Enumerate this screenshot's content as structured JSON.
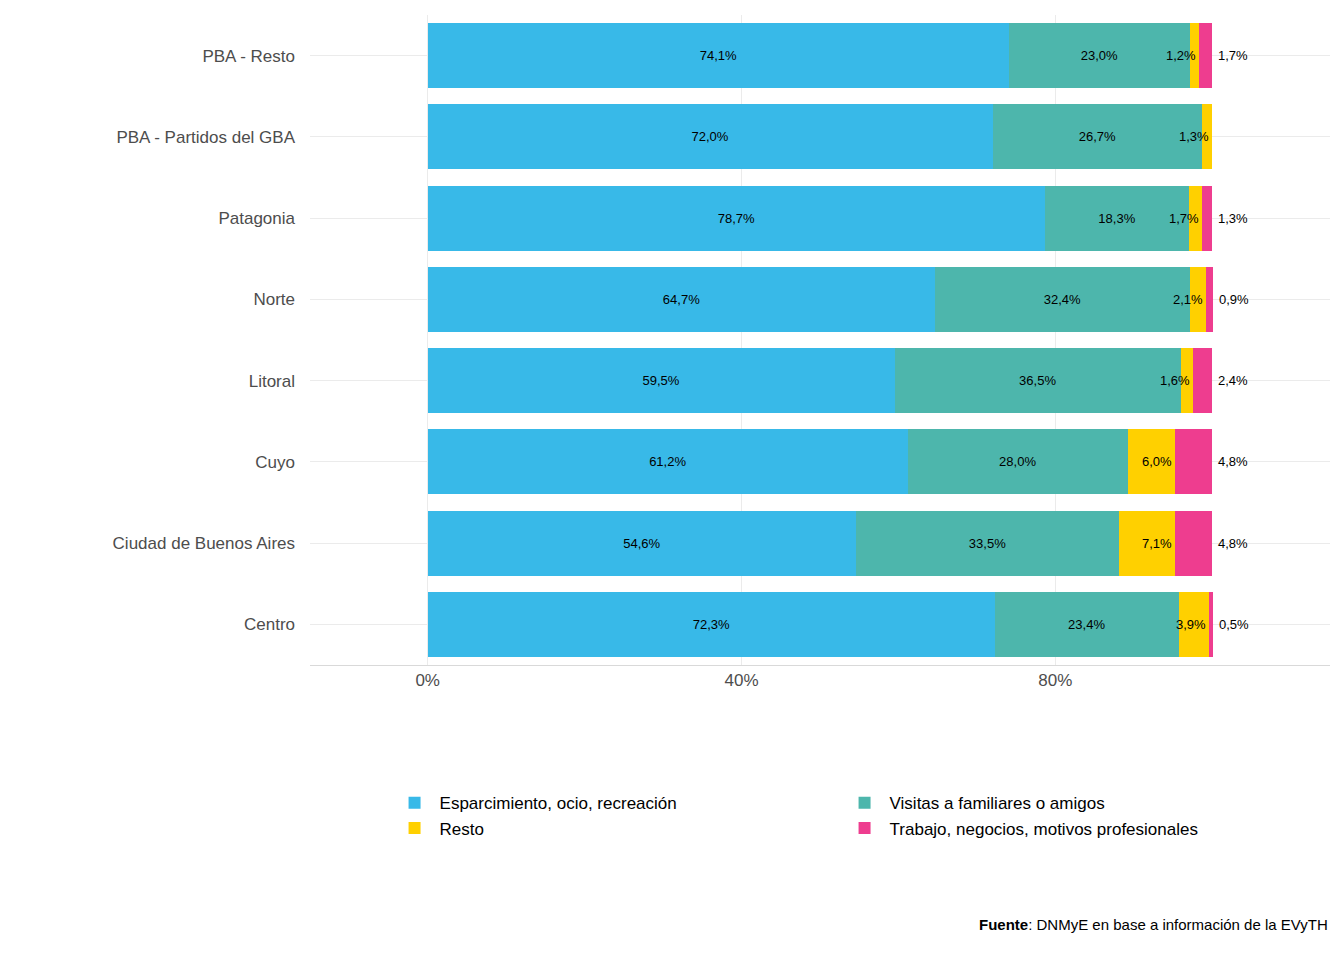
{
  "chart_data": {
    "type": "bar",
    "orientation": "horizontal",
    "stacked": true,
    "data_labels": true,
    "grid": true,
    "legend": "bottom",
    "categories": [
      "PBA - Resto",
      "PBA - Partidos del GBA",
      "Patagonia",
      "Norte",
      "Litoral",
      "Cuyo",
      "Ciudad de Buenos Aires",
      "Centro"
    ],
    "series": [
      {
        "name": "Esparcimiento, ocio, recreación",
        "color": "#38B9E8",
        "values": [
          74.1,
          72.0,
          78.7,
          64.7,
          59.5,
          61.2,
          54.6,
          72.3
        ],
        "value_labels": [
          "74,1%",
          "72,0%",
          "78,7%",
          "64,7%",
          "59,5%",
          "61,2%",
          "54,6%",
          "72,3%"
        ]
      },
      {
        "name": "Visitas a familiares o amigos",
        "color": "#4DB6AC",
        "values": [
          23.0,
          26.7,
          18.3,
          32.4,
          36.5,
          28.0,
          33.5,
          23.4
        ],
        "value_labels": [
          "23,0%",
          "26,7%",
          "18,3%",
          "32,4%",
          "36,5%",
          "28,0%",
          "33,5%",
          "23,4%"
        ]
      },
      {
        "name": "Resto",
        "color": "#FFD000",
        "values": [
          1.2,
          1.3,
          1.7,
          2.1,
          1.6,
          6.0,
          7.1,
          3.9
        ],
        "value_labels": [
          "1,2%",
          "1,3%",
          "1,7%",
          "2,1%",
          "1,6%",
          "6,0%",
          "7,1%",
          "3,9%"
        ]
      },
      {
        "name": "Trabajo, negocios, motivos profesionales",
        "color": "#EE3D8F",
        "values": [
          1.7,
          0,
          1.3,
          0.9,
          2.4,
          4.8,
          4.8,
          0.5
        ],
        "value_labels": [
          "1,7%",
          null,
          "1,3%",
          "0,9%",
          "2,4%",
          "4,8%",
          "4,8%",
          "0,5%"
        ]
      }
    ],
    "xlim": [
      -15,
      115
    ],
    "xticks": [
      {
        "value": 0,
        "label": "0%"
      },
      {
        "value": 40,
        "label": "40%"
      },
      {
        "value": 80,
        "label": "80%"
      }
    ],
    "source": "Fuente: DNMyE en base a información de la EVyTH"
  }
}
